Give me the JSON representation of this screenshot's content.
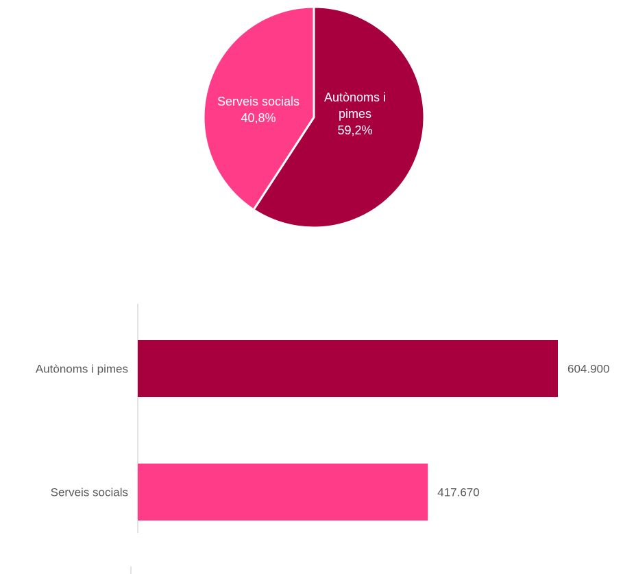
{
  "colors": {
    "autonoms": "#a8003f",
    "serveis": "#ff3c88",
    "axis": "#d9d9d9",
    "label_text": "#595959",
    "pie_label_text": "#ffffff"
  },
  "chart_data": [
    {
      "type": "pie",
      "slices": [
        {
          "label_lines": [
            "Autònoms i",
            "pimes"
          ],
          "percent_label": "59,2%",
          "value": 59.2,
          "color_key": "autonoms"
        },
        {
          "label_lines": [
            "Serveis socials"
          ],
          "percent_label": "40,8%",
          "value": 40.8,
          "color_key": "serveis"
        }
      ]
    },
    {
      "type": "bar",
      "orientation": "horizontal",
      "categories": [
        "Autònoms i pimes",
        "Serveis socials"
      ],
      "values": [
        604900,
        417670
      ],
      "value_labels": [
        "604.900",
        "417.670"
      ],
      "color_keys": [
        "autonoms",
        "serveis"
      ],
      "xlim": [
        0,
        604900
      ]
    }
  ]
}
